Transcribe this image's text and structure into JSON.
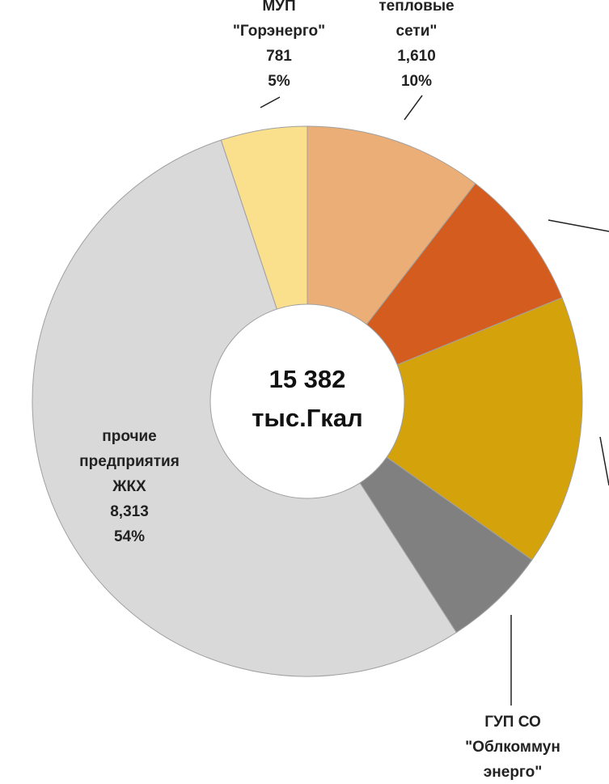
{
  "chart_data": {
    "type": "pie",
    "center_label": [
      "15 382",
      "тыс.Гкал"
    ],
    "categories": [
      [
        "тепловые",
        "сети\""
      ],
      null,
      null,
      [
        "ГУП СО",
        "\"Облкоммун",
        "энерго\""
      ],
      [
        "прочие",
        "предприятия",
        "ЖКХ"
      ],
      [
        "МУП",
        "\"Горэнерго\""
      ]
    ],
    "values": [
      1610,
      1290,
      2450,
      938,
      8313,
      781
    ],
    "value_labels": [
      "1,610",
      null,
      null,
      null,
      "8,313",
      "781"
    ],
    "percent_labels": [
      "10%",
      null,
      null,
      null,
      "54%",
      "5%"
    ],
    "colors": [
      "#EBAE76",
      "#D45C1E",
      "#D4A20A",
      "#808080",
      "#D9D9D9",
      "#FADF8C"
    ]
  }
}
